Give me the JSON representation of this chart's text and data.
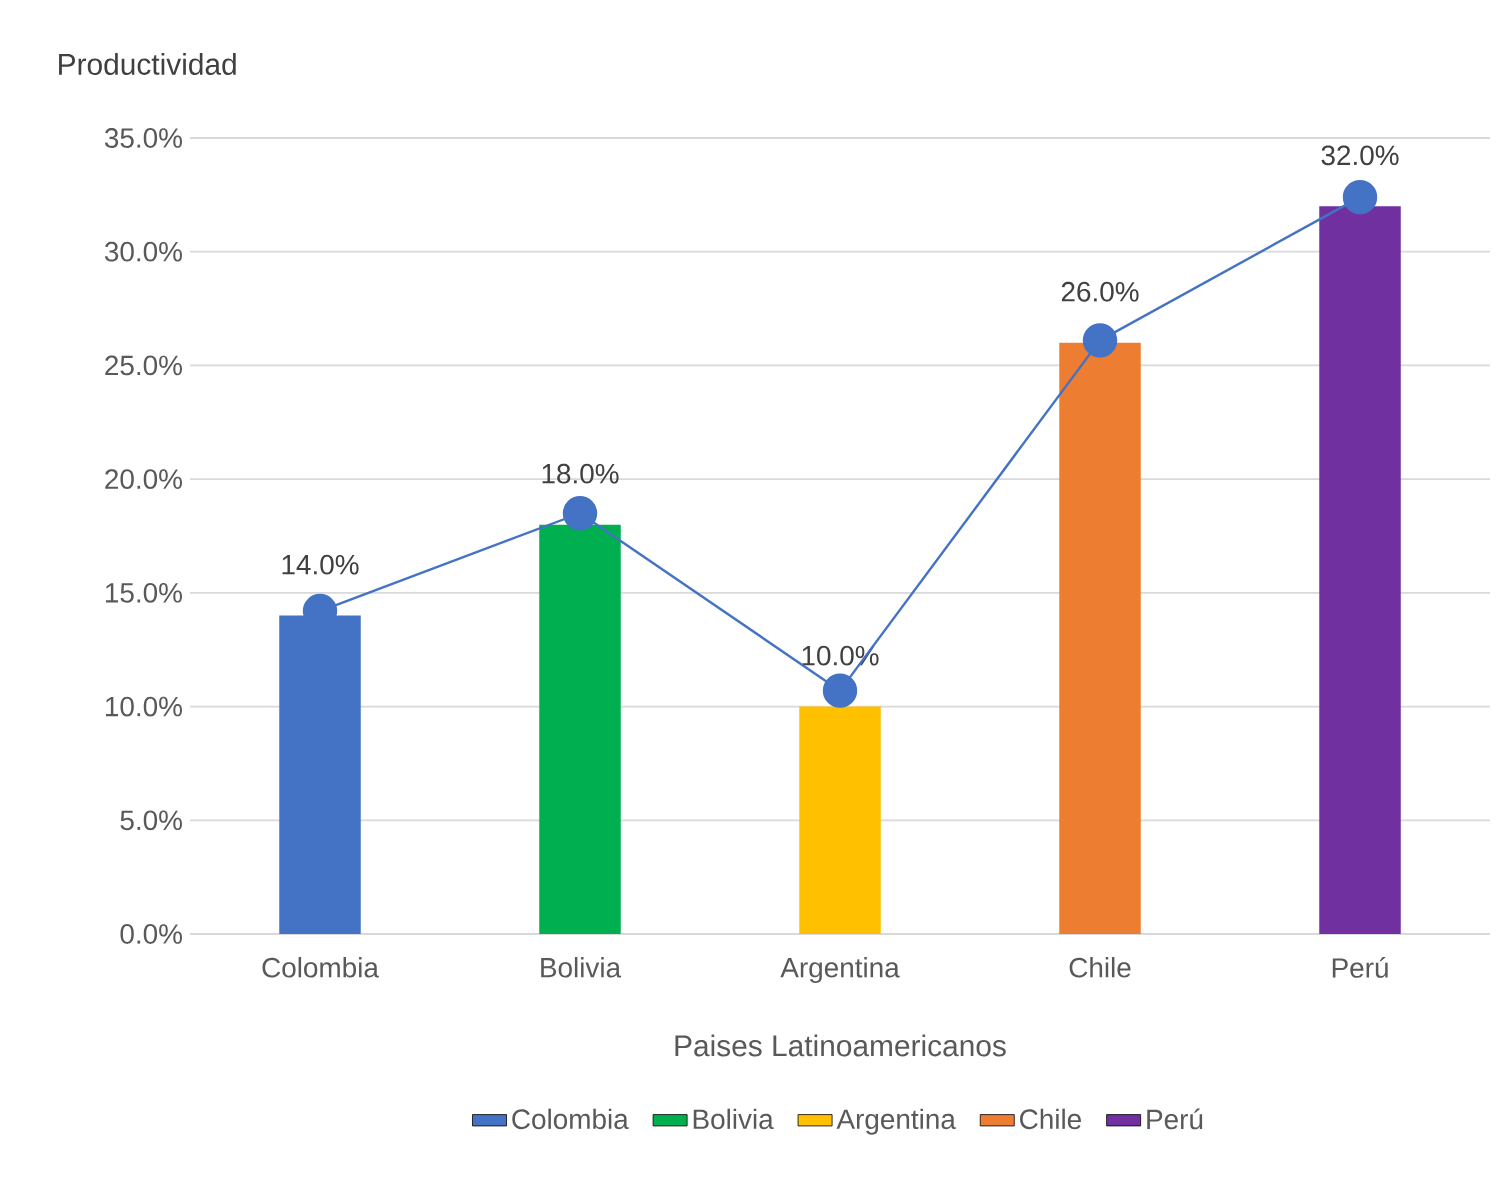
{
  "chart_data": {
    "type": "bar",
    "title": "Productividad",
    "xlabel": "Paises Latinoamericanos",
    "stacked": true,
    "categories": [
      "Colombia",
      "Bolivia",
      "Argentina",
      "Chile",
      "Perú"
    ],
    "series": [
      {
        "name": "Colombia",
        "color": "#4472c4",
        "values": [
          14.0,
          null,
          null,
          null,
          null
        ],
        "value_labels": [
          "14.0%",
          null,
          null,
          null,
          null
        ]
      },
      {
        "name": "Bolivia",
        "color": "#00b050",
        "values": [
          null,
          18.0,
          null,
          null,
          null
        ],
        "value_labels": [
          null,
          "18.0%",
          null,
          null,
          null
        ]
      },
      {
        "name": "Argentina",
        "color": "#ffc000",
        "values": [
          null,
          null,
          10.0,
          null,
          null
        ],
        "value_labels": [
          null,
          null,
          "10.0%",
          null,
          null
        ]
      },
      {
        "name": "Chile",
        "color": "#ed7d31",
        "values": [
          null,
          null,
          null,
          26.0,
          null
        ],
        "value_labels": [
          null,
          null,
          null,
          "26.0%",
          null
        ]
      },
      {
        "name": "Perú",
        "color": "#7030a0",
        "values": [
          null,
          null,
          null,
          null,
          32.0
        ],
        "value_labels": [
          null,
          null,
          null,
          null,
          "32.0%"
        ]
      },
      {
        "type": "line",
        "color": "#4472c4",
        "values": [
          14.2,
          18.5,
          10.7,
          26.1,
          32.4
        ],
        "marker": "circle"
      }
    ],
    "ylim": [
      0,
      35
    ],
    "yticks": [
      {
        "value": 0,
        "label": "0.0%"
      },
      {
        "value": 5,
        "label": "5.0%"
      },
      {
        "value": 10,
        "label": "10.0%"
      },
      {
        "value": 15,
        "label": "15.0%"
      },
      {
        "value": 20,
        "label": "20.0%"
      },
      {
        "value": 25,
        "label": "25.0%"
      },
      {
        "value": 30,
        "label": "30.0%"
      },
      {
        "value": 35,
        "label": "35.0%"
      }
    ],
    "grid": "y",
    "legend": "bottom"
  }
}
